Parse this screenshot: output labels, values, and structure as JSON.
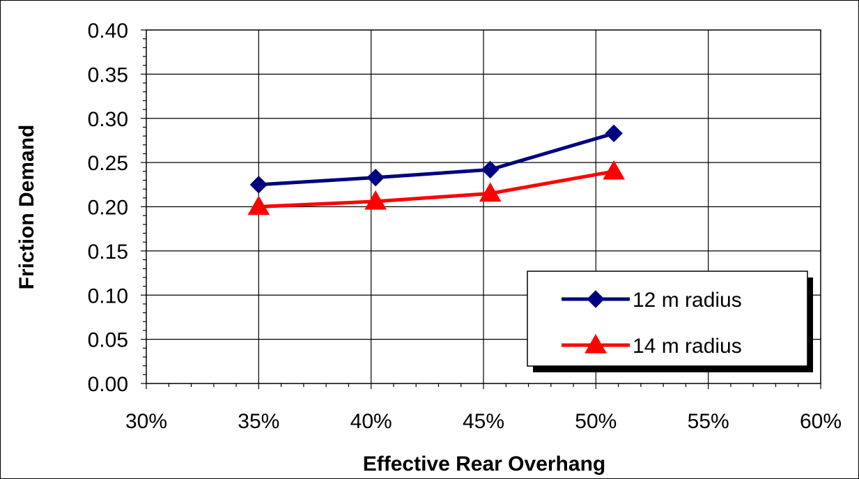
{
  "chart_data": {
    "type": "line",
    "xlabel": "Effective Rear Overhang",
    "ylabel": "Friction Demand",
    "xlim": [
      0.3,
      0.6
    ],
    "ylim": [
      0.0,
      0.4
    ],
    "x_ticks": [
      "30%",
      "35%",
      "40%",
      "45%",
      "50%",
      "55%",
      "60%"
    ],
    "x_tick_values": [
      0.3,
      0.35,
      0.4,
      0.45,
      0.5,
      0.55,
      0.6
    ],
    "y_ticks": [
      "0.00",
      "0.05",
      "0.10",
      "0.15",
      "0.20",
      "0.25",
      "0.30",
      "0.35",
      "0.40"
    ],
    "y_tick_values": [
      0.0,
      0.05,
      0.1,
      0.15,
      0.2,
      0.25,
      0.3,
      0.35,
      0.4
    ],
    "grid": true,
    "legend_position": "bottom-right",
    "series": [
      {
        "name": "12 m radius",
        "color": "#000080",
        "marker": "diamond",
        "x": [
          0.35,
          0.402,
          0.453,
          0.508
        ],
        "y": [
          0.225,
          0.233,
          0.242,
          0.283
        ]
      },
      {
        "name": "14 m radius",
        "color": "#ff0000",
        "marker": "triangle",
        "x": [
          0.35,
          0.402,
          0.453,
          0.508
        ],
        "y": [
          0.2,
          0.206,
          0.215,
          0.24
        ]
      }
    ]
  }
}
